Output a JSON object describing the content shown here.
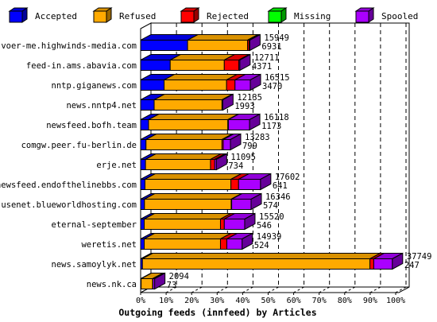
{
  "chart_data": {
    "type": "bar",
    "stacked": true,
    "orientation": "horizontal",
    "title": "Outgoing feeds (innfeed) by Articles",
    "xlabel": "",
    "ylabel": "",
    "xlim": [
      0,
      100
    ],
    "x_ticks": [
      "0%",
      "10%",
      "20%",
      "30%",
      "40%",
      "50%",
      "60%",
      "70%",
      "80%",
      "90%",
      "100%"
    ],
    "grid": true,
    "legend_position": "top",
    "legend": [
      {
        "name": "Accepted",
        "color": "#0000ff"
      },
      {
        "name": "Refused",
        "color": "#ffaa00"
      },
      {
        "name": "Rejected",
        "color": "#ff0000"
      },
      {
        "name": "Missing",
        "color": "#00ff00"
      },
      {
        "name": "Spooled",
        "color": "#aa00ff"
      }
    ],
    "categories": [
      "voer-me.highwinds-media.com",
      "feed-in.ams.abavia.com",
      "nntp.giganews.com",
      "news.nntp4.net",
      "newsfeed.bofh.team",
      "comgw.peer.fu-berlin.de",
      "erje.net",
      "newsfeed.endofthelinebbs.com",
      "usenet.blueworldhosting.com",
      "eternal-september",
      "weretis.net",
      "news.samoylyk.net",
      "news.nk.ca"
    ],
    "label_offered": [
      "15949",
      "12711",
      "16515",
      "12135",
      "16118",
      "13283",
      "11095",
      "17602",
      "16346",
      "15520",
      "14939",
      "37749",
      "2094"
    ],
    "label_accepted": [
      "6931",
      "4371",
      "3470",
      "1993",
      "1173",
      "799",
      "734",
      "641",
      "574",
      "546",
      "524",
      "247",
      "73"
    ],
    "series": [
      {
        "name": "Accepted",
        "values": [
          18.4,
          11.6,
          9.2,
          5.3,
          3.1,
          2.1,
          1.9,
          1.7,
          1.5,
          1.4,
          1.4,
          0.7,
          0.2
        ]
      },
      {
        "name": "Refused",
        "values": [
          23.5,
          21.2,
          24.5,
          26.6,
          31.1,
          29.8,
          25.5,
          33.7,
          34.0,
          29.9,
          29.9,
          89.2,
          4.5
        ]
      },
      {
        "name": "Rejected",
        "values": [
          0.6,
          5.7,
          3.3,
          0.2,
          0.2,
          0.5,
          1.6,
          3.0,
          0.2,
          1.5,
          2.5,
          1.5,
          0.1
        ]
      },
      {
        "name": "Missing",
        "values": [
          0,
          0,
          0,
          0,
          0,
          0,
          0,
          0,
          0,
          0,
          0,
          0,
          0
        ]
      },
      {
        "name": "Spooled",
        "values": [
          0.3,
          0.4,
          6.0,
          0.1,
          8.3,
          2.8,
          0.7,
          8.6,
          7.6,
          8.0,
          6.0,
          7.3,
          0.7
        ]
      }
    ]
  }
}
